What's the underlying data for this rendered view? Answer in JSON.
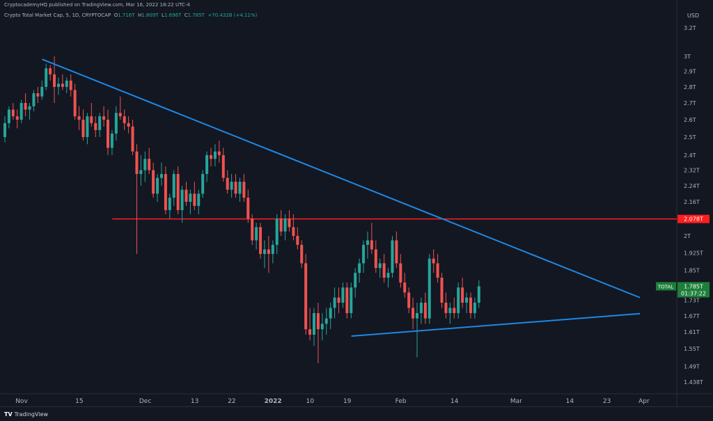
{
  "header": {
    "attribution": "CryptocademyHQ published on TradingView.com, Mar 16, 2022 18:22 UTC-4"
  },
  "legend": {
    "title": "Crypto Total Market Cap, ",
    "interval": "5, 1D, CRYPTOCAP",
    "o_label": "O",
    "o": "1.716T",
    "h_label": "H",
    "h": "1.809T",
    "l_label": "L",
    "l": "1.696T",
    "c_label": "C",
    "c": "1.785T",
    "change": "+70.432B (+4.11%)"
  },
  "currency": "USD",
  "footer": {
    "logo_mark": "TV",
    "logo_text": "TradingView"
  },
  "colors": {
    "up": "#26a69a",
    "down": "#ef5350",
    "trendline": "#1e88e5",
    "level": "#ff1e1e",
    "bg": "#131722"
  },
  "chart_data": {
    "type": "candlestick",
    "title": "Crypto Total Market Cap, 5, 1D, CRYPTOCAP",
    "yscale": "log",
    "ylim": [
      1.4,
      3.25
    ],
    "y_ticks": [
      {
        "label": "3.2T",
        "v": 3.2
      },
      {
        "label": "3T",
        "v": 3.0
      },
      {
        "label": "2.9T",
        "v": 2.9
      },
      {
        "label": "2.8T",
        "v": 2.8
      },
      {
        "label": "2.7T",
        "v": 2.7
      },
      {
        "label": "2.6T",
        "v": 2.6
      },
      {
        "label": "2.5T",
        "v": 2.5
      },
      {
        "label": "2.4T",
        "v": 2.4
      },
      {
        "label": "2.32T",
        "v": 2.32
      },
      {
        "label": "2.24T",
        "v": 2.24
      },
      {
        "label": "2.16T",
        "v": 2.16
      },
      {
        "label": "2T",
        "v": 2.0
      },
      {
        "label": "1.925T",
        "v": 1.925
      },
      {
        "label": "1.85T",
        "v": 1.85
      },
      {
        "label": "1.73T",
        "v": 1.73
      },
      {
        "label": "1.67T",
        "v": 1.67
      },
      {
        "label": "1.61T",
        "v": 1.61
      },
      {
        "label": "1.55T",
        "v": 1.55
      },
      {
        "label": "1.49T",
        "v": 1.49
      },
      {
        "label": "1.438T",
        "v": 1.438
      }
    ],
    "x_ticks": [
      {
        "label": "Nov",
        "d": 0
      },
      {
        "label": "15",
        "d": 14
      },
      {
        "label": "Dec",
        "d": 30
      },
      {
        "label": "13",
        "d": 42
      },
      {
        "label": "22",
        "d": 51
      },
      {
        "label": "2022",
        "d": 61
      },
      {
        "label": "10",
        "d": 70
      },
      {
        "label": "19",
        "d": 79
      },
      {
        "label": "Feb",
        "d": 92
      },
      {
        "label": "14",
        "d": 105
      },
      {
        "label": "Mar",
        "d": 120
      },
      {
        "label": "14",
        "d": 133
      },
      {
        "label": "23",
        "d": 142
      },
      {
        "label": "Apr",
        "d": 151
      }
    ],
    "level_line": {
      "value": 2.078,
      "label": "2.078T",
      "from_day": 22
    },
    "last_price": {
      "label": "TOTAL",
      "value": "1.785T",
      "countdown": "01:37:22",
      "v": 1.785
    },
    "trendlines": [
      {
        "name": "descending resistance",
        "p1": {
          "d": 5,
          "v": 2.98
        },
        "p2": {
          "d": 150,
          "v": 1.74
        }
      },
      {
        "name": "ascending support",
        "p1": {
          "d": 80,
          "v": 1.595
        },
        "p2": {
          "d": 150,
          "v": 1.678
        }
      }
    ],
    "ohlc": [
      [
        2.5,
        2.62,
        2.47,
        2.58
      ],
      [
        2.58,
        2.68,
        2.55,
        2.66
      ],
      [
        2.66,
        2.7,
        2.6,
        2.62
      ],
      [
        2.62,
        2.66,
        2.55,
        2.6
      ],
      [
        2.6,
        2.72,
        2.58,
        2.7
      ],
      [
        2.7,
        2.76,
        2.62,
        2.66
      ],
      [
        2.66,
        2.7,
        2.6,
        2.68
      ],
      [
        2.68,
        2.78,
        2.65,
        2.76
      ],
      [
        2.76,
        2.8,
        2.7,
        2.74
      ],
      [
        2.74,
        2.84,
        2.72,
        2.8
      ],
      [
        2.8,
        2.95,
        2.78,
        2.92
      ],
      [
        2.92,
        2.94,
        2.84,
        2.88
      ],
      [
        2.88,
        3.0,
        2.7,
        2.8
      ],
      [
        2.8,
        2.86,
        2.75,
        2.82
      ],
      [
        2.82,
        2.88,
        2.78,
        2.8
      ],
      [
        2.8,
        2.86,
        2.76,
        2.84
      ],
      [
        2.84,
        2.88,
        2.74,
        2.78
      ],
      [
        2.78,
        2.82,
        2.6,
        2.62
      ],
      [
        2.62,
        2.68,
        2.54,
        2.6
      ],
      [
        2.6,
        2.66,
        2.48,
        2.5
      ],
      [
        2.5,
        2.64,
        2.46,
        2.62
      ],
      [
        2.62,
        2.7,
        2.56,
        2.58
      ],
      [
        2.58,
        2.62,
        2.5,
        2.54
      ],
      [
        2.54,
        2.64,
        2.5,
        2.62
      ],
      [
        2.62,
        2.68,
        2.56,
        2.6
      ],
      [
        2.6,
        2.66,
        2.4,
        2.44
      ],
      [
        2.44,
        2.54,
        2.4,
        2.52
      ],
      [
        2.52,
        2.68,
        2.48,
        2.64
      ],
      [
        2.64,
        2.74,
        2.6,
        2.62
      ],
      [
        2.62,
        2.66,
        2.54,
        2.58
      ],
      [
        2.58,
        2.62,
        2.52,
        2.56
      ],
      [
        2.56,
        2.6,
        2.4,
        2.42
      ],
      [
        2.42,
        2.46,
        1.92,
        2.3
      ],
      [
        2.3,
        2.4,
        2.24,
        2.32
      ],
      [
        2.32,
        2.42,
        2.26,
        2.38
      ],
      [
        2.38,
        2.44,
        2.3,
        2.32
      ],
      [
        2.32,
        2.36,
        2.18,
        2.2
      ],
      [
        2.2,
        2.3,
        2.16,
        2.28
      ],
      [
        2.28,
        2.36,
        2.24,
        2.3
      ],
      [
        2.3,
        2.34,
        2.1,
        2.12
      ],
      [
        2.12,
        2.2,
        2.08,
        2.18
      ],
      [
        2.18,
        2.32,
        2.14,
        2.3
      ],
      [
        2.3,
        2.34,
        2.1,
        2.12
      ],
      [
        2.12,
        2.24,
        2.06,
        2.22
      ],
      [
        2.22,
        2.26,
        2.14,
        2.16
      ],
      [
        2.16,
        2.22,
        2.1,
        2.2
      ],
      [
        2.2,
        2.26,
        2.12,
        2.14
      ],
      [
        2.14,
        2.22,
        2.1,
        2.2
      ],
      [
        2.2,
        2.32,
        2.18,
        2.3
      ],
      [
        2.3,
        2.42,
        2.26,
        2.4
      ],
      [
        2.4,
        2.44,
        2.34,
        2.38
      ],
      [
        2.38,
        2.46,
        2.34,
        2.42
      ],
      [
        2.42,
        2.48,
        2.36,
        2.4
      ],
      [
        2.4,
        2.44,
        2.26,
        2.28
      ],
      [
        2.28,
        2.32,
        2.2,
        2.22
      ],
      [
        2.22,
        2.3,
        2.18,
        2.26
      ],
      [
        2.26,
        2.3,
        2.18,
        2.2
      ],
      [
        2.2,
        2.28,
        2.16,
        2.26
      ],
      [
        2.26,
        2.3,
        2.16,
        2.18
      ],
      [
        2.18,
        2.22,
        2.06,
        2.08
      ],
      [
        2.08,
        2.1,
        1.96,
        1.98
      ],
      [
        1.98,
        2.06,
        1.94,
        2.04
      ],
      [
        2.04,
        2.06,
        1.9,
        1.92
      ],
      [
        1.92,
        1.98,
        1.86,
        1.94
      ],
      [
        1.94,
        2.0,
        1.84,
        1.92
      ],
      [
        1.92,
        1.98,
        1.88,
        1.96
      ],
      [
        1.96,
        2.1,
        1.92,
        2.08
      ],
      [
        2.08,
        2.12,
        2.0,
        2.02
      ],
      [
        2.02,
        2.1,
        1.98,
        2.08
      ],
      [
        2.08,
        2.12,
        2.02,
        2.04
      ],
      [
        2.04,
        2.1,
        1.98,
        2.0
      ],
      [
        2.0,
        2.04,
        1.94,
        1.96
      ],
      [
        1.96,
        1.98,
        1.86,
        1.88
      ],
      [
        1.88,
        1.92,
        1.6,
        1.62
      ],
      [
        1.62,
        1.7,
        1.58,
        1.6
      ],
      [
        1.6,
        1.7,
        1.56,
        1.68
      ],
      [
        1.68,
        1.72,
        1.5,
        1.62
      ],
      [
        1.62,
        1.68,
        1.58,
        1.64
      ],
      [
        1.64,
        1.7,
        1.6,
        1.66
      ],
      [
        1.66,
        1.72,
        1.62,
        1.7
      ],
      [
        1.7,
        1.78,
        1.66,
        1.74
      ],
      [
        1.74,
        1.78,
        1.68,
        1.72
      ],
      [
        1.72,
        1.8,
        1.7,
        1.78
      ],
      [
        1.78,
        1.8,
        1.66,
        1.68
      ],
      [
        1.68,
        1.8,
        1.66,
        1.78
      ],
      [
        1.78,
        1.86,
        1.74,
        1.84
      ],
      [
        1.84,
        1.9,
        1.8,
        1.88
      ],
      [
        1.88,
        1.98,
        1.84,
        1.96
      ],
      [
        1.96,
        2.02,
        1.9,
        1.98
      ],
      [
        1.98,
        2.06,
        1.92,
        1.94
      ],
      [
        1.94,
        1.98,
        1.84,
        1.86
      ],
      [
        1.86,
        1.9,
        1.82,
        1.88
      ],
      [
        1.88,
        1.92,
        1.8,
        1.82
      ],
      [
        1.82,
        1.86,
        1.78,
        1.84
      ],
      [
        1.84,
        2.0,
        1.82,
        1.98
      ],
      [
        1.98,
        2.02,
        1.86,
        1.88
      ],
      [
        1.88,
        1.92,
        1.78,
        1.8
      ],
      [
        1.8,
        1.84,
        1.74,
        1.76
      ],
      [
        1.76,
        1.78,
        1.68,
        1.7
      ],
      [
        1.7,
        1.74,
        1.62,
        1.66
      ],
      [
        1.66,
        1.72,
        1.52,
        1.68
      ],
      [
        1.68,
        1.74,
        1.64,
        1.72
      ],
      [
        1.72,
        1.76,
        1.64,
        1.66
      ],
      [
        1.66,
        1.92,
        1.64,
        1.9
      ],
      [
        1.9,
        1.94,
        1.84,
        1.88
      ],
      [
        1.88,
        1.92,
        1.8,
        1.82
      ],
      [
        1.82,
        1.84,
        1.7,
        1.72
      ],
      [
        1.72,
        1.76,
        1.66,
        1.68
      ],
      [
        1.68,
        1.72,
        1.64,
        1.7
      ],
      [
        1.7,
        1.74,
        1.66,
        1.68
      ],
      [
        1.68,
        1.8,
        1.66,
        1.78
      ],
      [
        1.78,
        1.82,
        1.7,
        1.72
      ],
      [
        1.72,
        1.76,
        1.68,
        1.74
      ],
      [
        1.74,
        1.76,
        1.66,
        1.68
      ],
      [
        1.68,
        1.74,
        1.66,
        1.72
      ],
      [
        1.72,
        1.81,
        1.7,
        1.785
      ]
    ]
  }
}
